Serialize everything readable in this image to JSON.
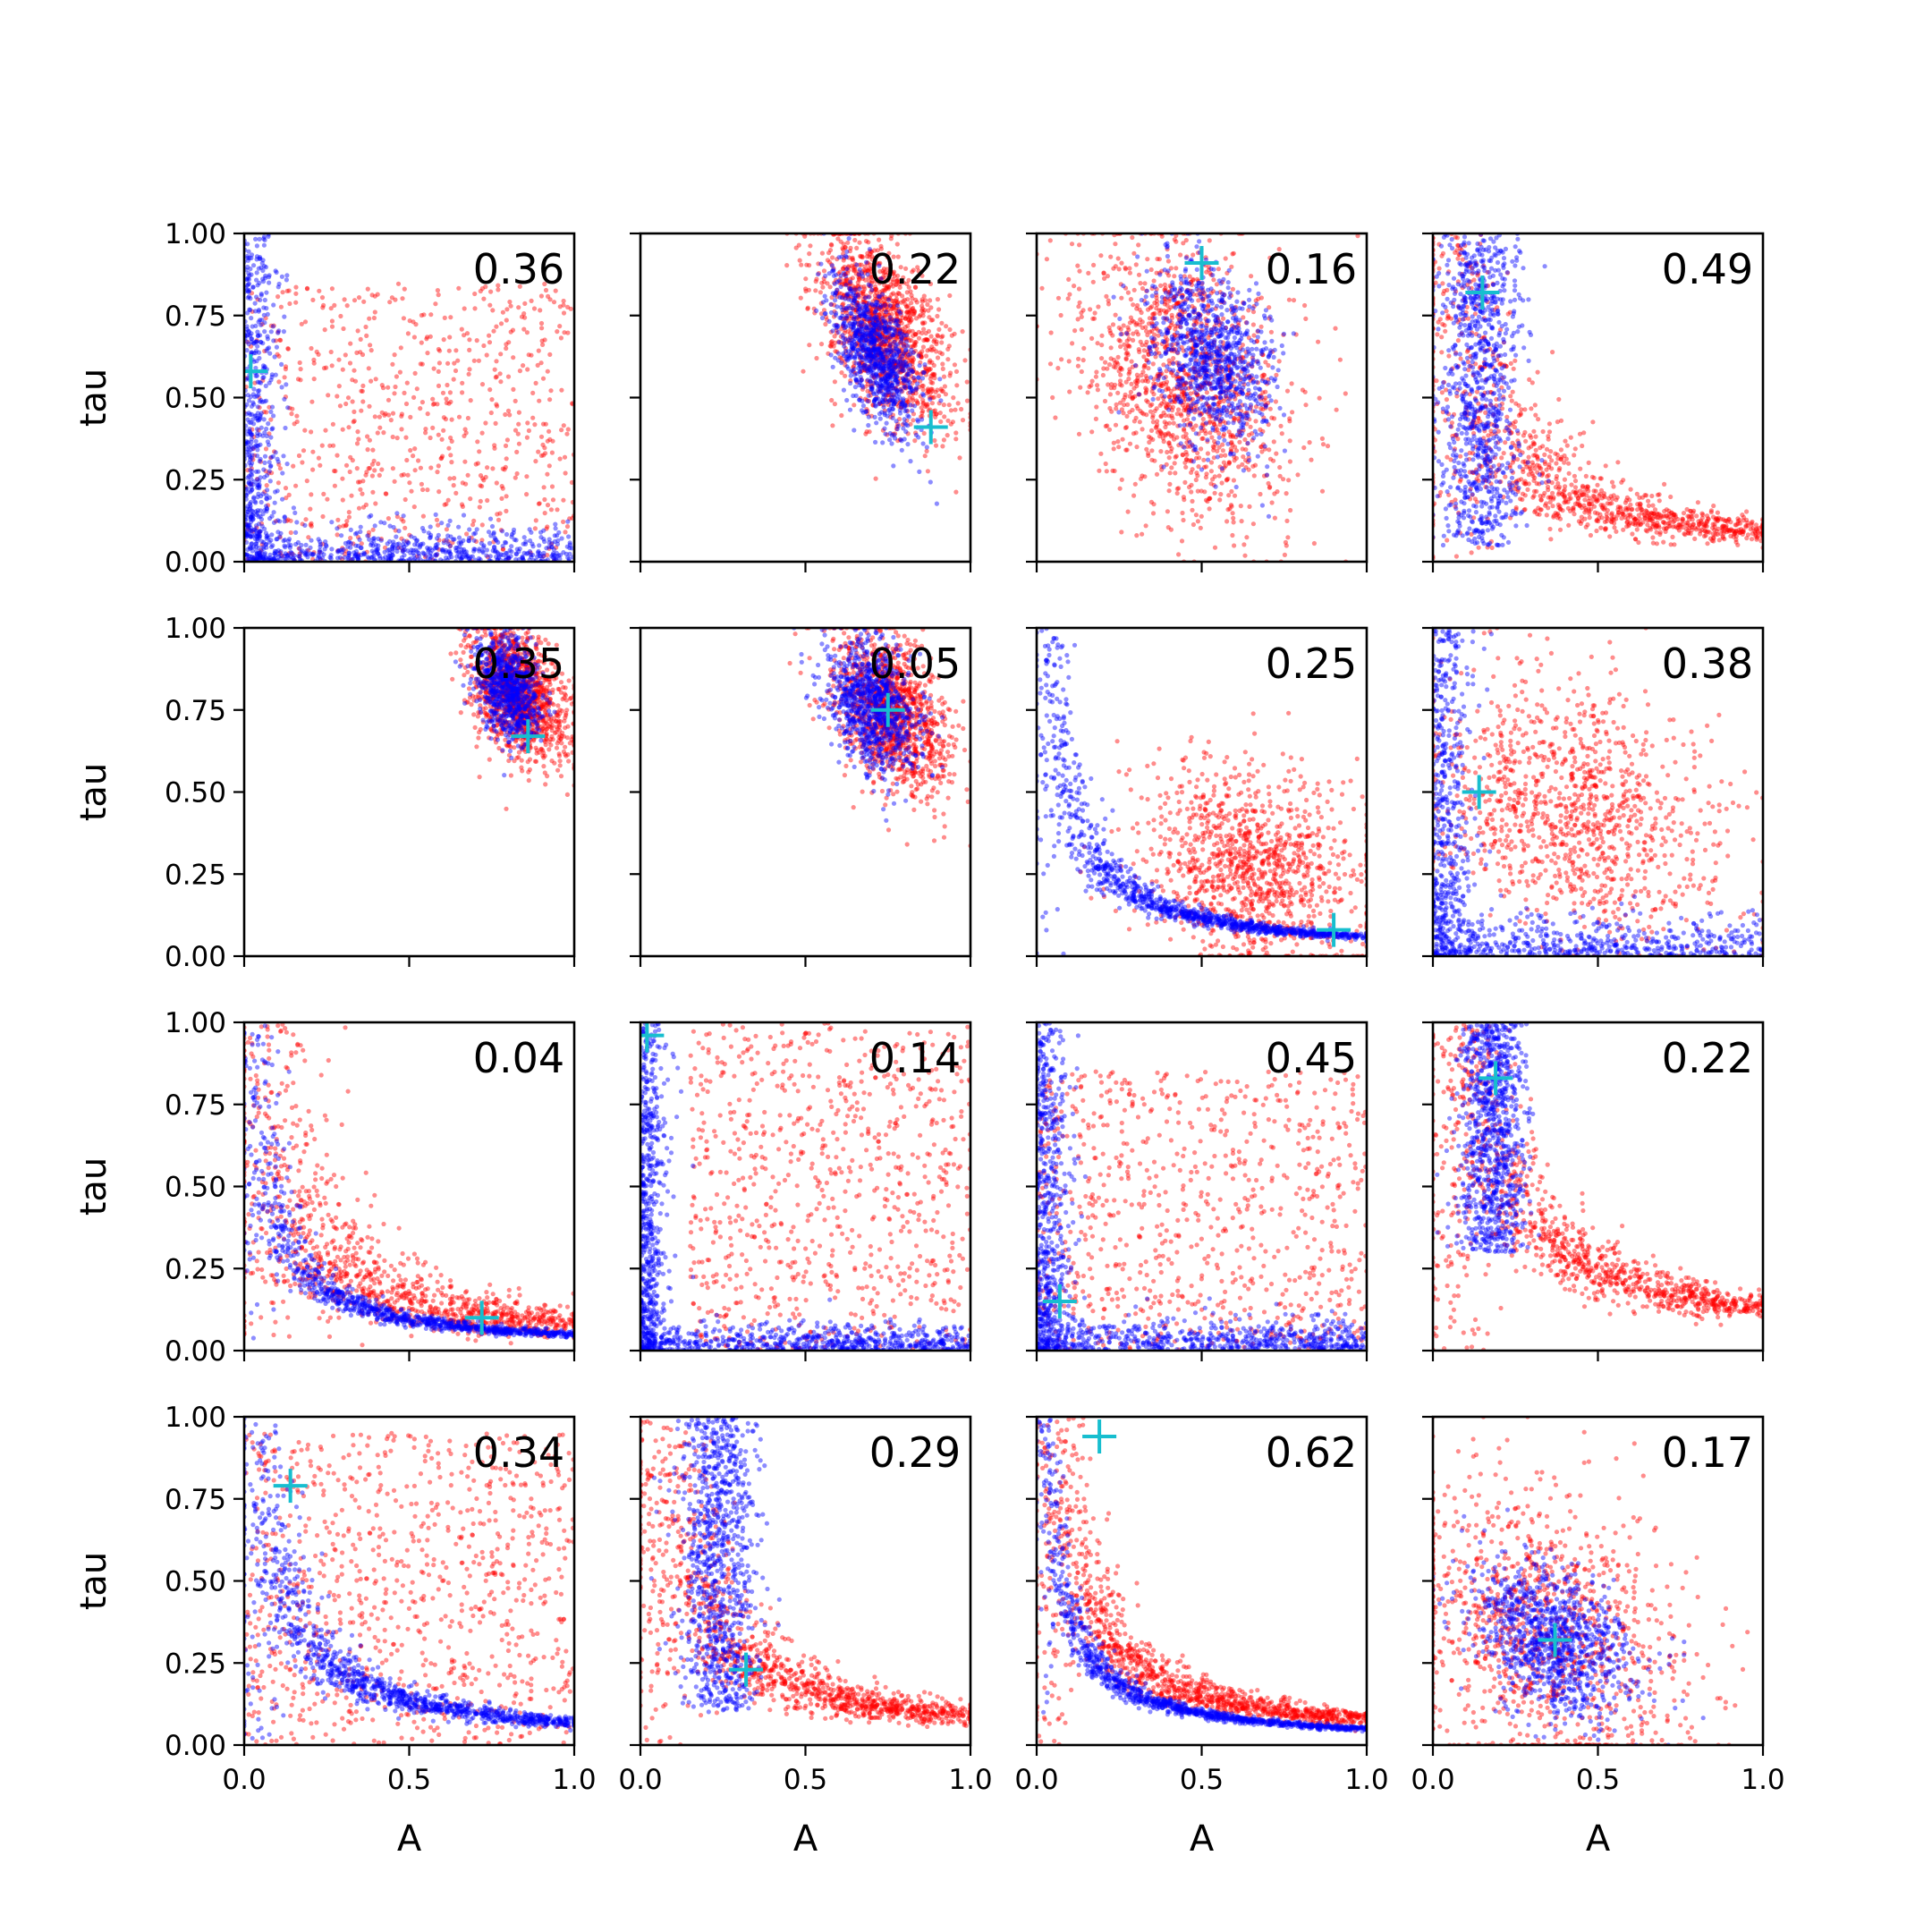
{
  "chart_data": {
    "type": "scatter",
    "grid": false,
    "xlabel": "A",
    "ylabel": "tau",
    "xlim": [
      0,
      1
    ],
    "ylim": [
      0,
      1
    ],
    "x_ticks": [
      "0.0",
      "0.5",
      "1.0"
    ],
    "y_ticks": [
      "0.00",
      "0.25",
      "0.50",
      "0.75",
      "1.00"
    ],
    "colors": {
      "series_a": "#ff0000",
      "series_b": "#0000ff",
      "marker": "#17becf"
    },
    "panels": [
      {
        "value": "0.36",
        "marker": [
          0.02,
          0.58
        ],
        "red": {
          "shape": "uniform",
          "x": [
            0.0,
            1.0
          ],
          "y": [
            0.0,
            0.85
          ],
          "n": 700
        },
        "blue": {
          "shape": "L",
          "n": 1100,
          "spread": 0.05
        }
      },
      {
        "value": "0.22",
        "marker": [
          0.88,
          0.41
        ],
        "red": {
          "shape": "blob",
          "mu": [
            0.74,
            0.7
          ],
          "sd": [
            0.1,
            0.15
          ],
          "rho": -0.5,
          "n": 1300
        },
        "blue": {
          "shape": "blob",
          "mu": [
            0.71,
            0.64
          ],
          "sd": [
            0.07,
            0.12
          ],
          "rho": -0.6,
          "n": 900
        }
      },
      {
        "value": "0.16",
        "marker": [
          0.5,
          0.91
        ],
        "red": {
          "shape": "blob",
          "mu": [
            0.45,
            0.56
          ],
          "sd": [
            0.16,
            0.22
          ],
          "rho": -0.3,
          "n": 1300
        },
        "blue": {
          "shape": "blob",
          "mu": [
            0.53,
            0.62
          ],
          "sd": [
            0.09,
            0.14
          ],
          "rho": -0.3,
          "n": 900
        }
      },
      {
        "value": "0.49",
        "marker": [
          0.15,
          0.82
        ],
        "red": {
          "shape": "curve",
          "k": 0.09,
          "sd": 0.22,
          "n": 1100
        },
        "blue": {
          "shape": "band",
          "mu": 0.14,
          "sd": 0.06,
          "y": [
            0.05,
            1.0
          ],
          "n": 900
        }
      },
      {
        "value": "0.35",
        "marker": [
          0.86,
          0.67
        ],
        "red": {
          "shape": "blob",
          "mu": [
            0.83,
            0.8
          ],
          "sd": [
            0.07,
            0.1
          ],
          "rho": -0.4,
          "n": 1300
        },
        "blue": {
          "shape": "blob",
          "mu": [
            0.8,
            0.82
          ],
          "sd": [
            0.05,
            0.08
          ],
          "rho": -0.3,
          "n": 800
        }
      },
      {
        "value": "0.05",
        "marker": [
          0.75,
          0.75
        ],
        "red": {
          "shape": "blob",
          "mu": [
            0.76,
            0.74
          ],
          "sd": [
            0.09,
            0.12
          ],
          "rho": -0.4,
          "n": 1200
        },
        "blue": {
          "shape": "blob",
          "mu": [
            0.7,
            0.76
          ],
          "sd": [
            0.07,
            0.1
          ],
          "rho": -0.3,
          "n": 900
        }
      },
      {
        "value": "0.25",
        "marker": [
          0.9,
          0.08
        ],
        "red": {
          "shape": "blob",
          "mu": [
            0.65,
            0.28
          ],
          "sd": [
            0.17,
            0.15
          ],
          "rho": -0.2,
          "n": 1100
        },
        "blue": {
          "shape": "curve",
          "k": 0.06,
          "sd": 0.09,
          "n": 1100
        }
      },
      {
        "value": "0.38",
        "marker": [
          0.14,
          0.5
        ],
        "red": {
          "shape": "blob",
          "mu": [
            0.42,
            0.45
          ],
          "sd": [
            0.22,
            0.2
          ],
          "rho": -0.3,
          "n": 1100
        },
        "blue": {
          "shape": "L",
          "n": 1000,
          "spread": 0.06
        }
      },
      {
        "value": "0.04",
        "marker": [
          0.72,
          0.1
        ],
        "red": {
          "shape": "curve",
          "k": 0.08,
          "sd": 0.26,
          "n": 1100
        },
        "blue": {
          "shape": "curve",
          "k": 0.05,
          "sd": 0.1,
          "n": 1000
        }
      },
      {
        "value": "0.14",
        "marker": [
          0.02,
          0.96
        ],
        "red": {
          "shape": "uniform",
          "x": [
            0.15,
            1.0
          ],
          "y": [
            0.0,
            1.0
          ],
          "n": 800
        },
        "blue": {
          "shape": "L",
          "n": 1200,
          "spread": 0.04
        }
      },
      {
        "value": "0.45",
        "marker": [
          0.07,
          0.15
        ],
        "red": {
          "shape": "uniform",
          "x": [
            0.0,
            1.0
          ],
          "y": [
            0.0,
            0.85
          ],
          "n": 800
        },
        "blue": {
          "shape": "L",
          "n": 1200,
          "spread": 0.05
        }
      },
      {
        "value": "0.22",
        "marker": [
          0.19,
          0.83
        ],
        "red": {
          "shape": "curve",
          "k": 0.13,
          "sd": 0.16,
          "n": 1100
        },
        "blue": {
          "shape": "band",
          "mu": 0.18,
          "sd": 0.05,
          "y": [
            0.3,
            1.0
          ],
          "n": 900
        }
      },
      {
        "value": "0.34",
        "marker": [
          0.14,
          0.79
        ],
        "red": {
          "shape": "uniform",
          "x": [
            0.0,
            1.0
          ],
          "y": [
            0.0,
            0.95
          ],
          "n": 900
        },
        "blue": {
          "shape": "curve",
          "k": 0.07,
          "sd": 0.12,
          "n": 1100
        }
      },
      {
        "value": "0.29",
        "marker": [
          0.32,
          0.23
        ],
        "red": {
          "shape": "curve",
          "k": 0.09,
          "sd": 0.2,
          "n": 1200
        },
        "blue": {
          "shape": "band",
          "mu": 0.24,
          "sd": 0.06,
          "y": [
            0.1,
            1.0
          ],
          "n": 900
        }
      },
      {
        "value": "0.62",
        "marker": [
          0.19,
          0.94
        ],
        "red": {
          "shape": "curve",
          "k": 0.08,
          "sd": 0.14,
          "n": 1200
        },
        "blue": {
          "shape": "curve",
          "k": 0.05,
          "sd": 0.07,
          "n": 1100
        }
      },
      {
        "value": "0.17",
        "marker": [
          0.37,
          0.32
        ],
        "red": {
          "shape": "blob",
          "mu": [
            0.33,
            0.35
          ],
          "sd": [
            0.22,
            0.22
          ],
          "rho": -0.3,
          "n": 1100
        },
        "blue": {
          "shape": "blob",
          "mu": [
            0.36,
            0.32
          ],
          "sd": [
            0.12,
            0.12
          ],
          "rho": -0.4,
          "n": 1000
        }
      }
    ]
  }
}
